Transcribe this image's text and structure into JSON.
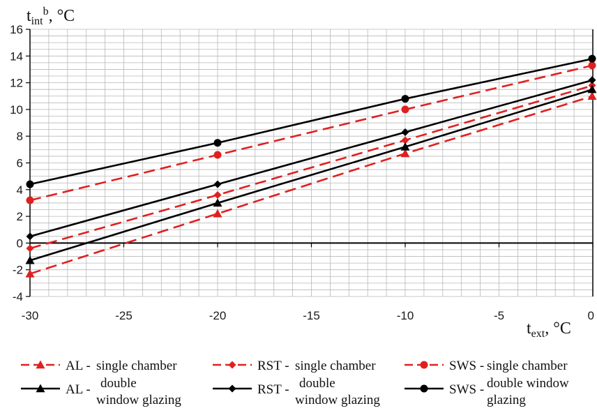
{
  "chart_data": {
    "type": "line",
    "ylabel": {
      "main": "t",
      "sub": "int",
      "sup": "b",
      "unit": ", °C"
    },
    "xlabel": {
      "main": "t",
      "sub": "ext",
      "unit": ", °C"
    },
    "xlim": [
      -30,
      0
    ],
    "ylim": [
      -4,
      16
    ],
    "x_ticks": [
      -30,
      -25,
      -20,
      -15,
      -10,
      -5,
      0
    ],
    "y_ticks": [
      -4,
      -2,
      0,
      2,
      4,
      6,
      8,
      10,
      12,
      14,
      16
    ],
    "grid": true,
    "x": [
      -30,
      -20,
      -10,
      0
    ],
    "series": [
      {
        "name_code": "AL -",
        "name_desc": [
          "single chamber"
        ],
        "color": "#e02020",
        "dashed": true,
        "marker": "triangle",
        "values": [
          -2.3,
          2.2,
          6.7,
          11.0
        ]
      },
      {
        "name_code": "RST -",
        "name_desc": [
          "single chamber"
        ],
        "color": "#e02020",
        "dashed": true,
        "marker": "diamond",
        "values": [
          -0.4,
          3.6,
          7.7,
          11.8
        ]
      },
      {
        "name_code": "SWS -",
        "name_desc": [
          "single chamber"
        ],
        "color": "#e02020",
        "dashed": true,
        "marker": "circle",
        "values": [
          3.2,
          6.6,
          10.0,
          13.3
        ]
      },
      {
        "name_code": "AL -",
        "name_desc": [
          "double",
          "window glazing"
        ],
        "color": "#000000",
        "dashed": false,
        "marker": "triangle",
        "values": [
          -1.3,
          3.0,
          7.2,
          11.5
        ]
      },
      {
        "name_code": "RST -",
        "name_desc": [
          "double",
          "window glazing"
        ],
        "color": "#000000",
        "dashed": false,
        "marker": "diamond",
        "values": [
          0.5,
          4.4,
          8.3,
          12.2
        ]
      },
      {
        "name_code": "SWS -",
        "name_desc": [
          "double window",
          "glazing"
        ],
        "color": "#000000",
        "dashed": false,
        "marker": "circle",
        "values": [
          4.4,
          7.5,
          10.8,
          13.8
        ]
      }
    ]
  }
}
